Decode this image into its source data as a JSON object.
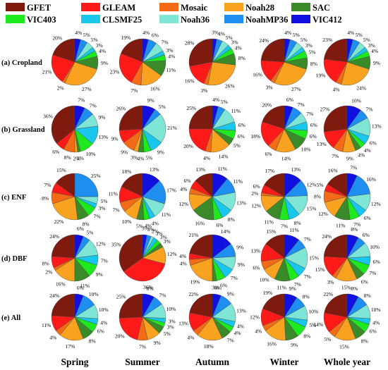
{
  "chart_data": {
    "type": "pie",
    "legend": {
      "position": "top",
      "items": [
        {
          "name": "GFET",
          "color": "#7f1a0f"
        },
        {
          "name": "GLEAM",
          "color": "#ff1a1a"
        },
        {
          "name": "Mosaic",
          "color": "#f36a17"
        },
        {
          "name": "Noah28",
          "color": "#f8a21f"
        },
        {
          "name": "SAC",
          "color": "#3a8a2a"
        },
        {
          "name": "VIC403",
          "color": "#1ee81e"
        },
        {
          "name": "CLSMF25",
          "color": "#19c7ec"
        },
        {
          "name": "Noah36",
          "color": "#7fe6d6"
        },
        {
          "name": "NoahMP36",
          "color": "#1e8ef0"
        },
        {
          "name": "VIC412",
          "color": "#1010e0"
        }
      ]
    },
    "rows": [
      "(a) Cropland",
      "(b) Grassland",
      "(c) ENF",
      "(d) DBF",
      "(e) All"
    ],
    "columns": [
      "Spring",
      "Summer",
      "Autumn",
      "Winter",
      "Whole year"
    ],
    "series_order": [
      "GFET",
      "GLEAM",
      "Mosaic",
      "Noah28",
      "SAC",
      "VIC403",
      "CLSMF25",
      "Noah36",
      "NoahMP36",
      "VIC412"
    ],
    "pies": [
      [
        [
          20,
          21,
          2,
          27,
          9,
          4,
          3,
          5,
          5,
          4
        ],
        [
          19,
          23,
          7,
          16,
          11,
          4,
          3,
          7,
          6,
          4
        ],
        [
          28,
          16,
          3,
          26,
          8,
          4,
          3,
          5,
          4,
          3
        ],
        [
          24,
          16,
          3,
          27,
          8,
          5,
          3,
          5,
          5,
          4
        ],
        [
          23,
          19,
          4,
          24,
          9,
          4,
          3,
          5,
          5,
          4
        ]
      ],
      [
        [
          36,
          6,
          8,
          2,
          2,
          10,
          13,
          9,
          7,
          7
        ],
        [
          26,
          9,
          9,
          3,
          4,
          5,
          9,
          21,
          5,
          9
        ],
        [
          25,
          20,
          4,
          14,
          5,
          6,
          6,
          11,
          5,
          4
        ],
        [
          20,
          18,
          6,
          14,
          10,
          6,
          6,
          7,
          7,
          6
        ],
        [
          27,
          13,
          7,
          9,
          4,
          4,
          6,
          13,
          7,
          10
        ]
      ],
      [
        [
          15,
          7,
          8,
          22,
          8,
          7,
          3,
          5,
          25,
          0
        ],
        [
          18,
          11,
          7,
          10,
          5,
          4,
          4,
          11,
          17,
          13
        ],
        [
          13,
          6,
          4,
          12,
          16,
          6,
          8,
          13,
          11,
          11
        ],
        [
          17,
          6,
          2,
          12,
          11,
          7,
          8,
          15,
          12,
          13
        ],
        [
          16,
          5,
          8,
          12,
          11,
          7,
          6,
          12,
          16,
          7
        ]
      ],
      [
        [
          24,
          8,
          2,
          16,
          11,
          9,
          7,
          12,
          5,
          6
        ],
        [
          35,
          36,
          0,
          12,
          3,
          3,
          3,
          2,
          3,
          3
        ],
        [
          21,
          4,
          4,
          19,
          3,
          6,
          7,
          9,
          9,
          14
        ],
        [
          15,
          13,
          6,
          10,
          11,
          7,
          7,
          15,
          7,
          11
        ],
        [
          24,
          15,
          3,
          15,
          6,
          7,
          6,
          10,
          6,
          8
        ]
      ],
      [
        [
          24,
          11,
          4,
          17,
          8,
          6,
          4,
          10,
          10,
          6
        ],
        [
          25,
          20,
          7,
          9,
          5,
          3,
          3,
          10,
          7,
          8
        ],
        [
          22,
          13,
          4,
          18,
          7,
          4,
          4,
          13,
          9,
          6
        ],
        [
          19,
          12,
          4,
          16,
          9,
          8,
          5,
          10,
          8,
          9
        ],
        [
          22,
          14,
          5,
          15,
          8,
          6,
          4,
          10,
          8,
          8
        ]
      ]
    ]
  }
}
